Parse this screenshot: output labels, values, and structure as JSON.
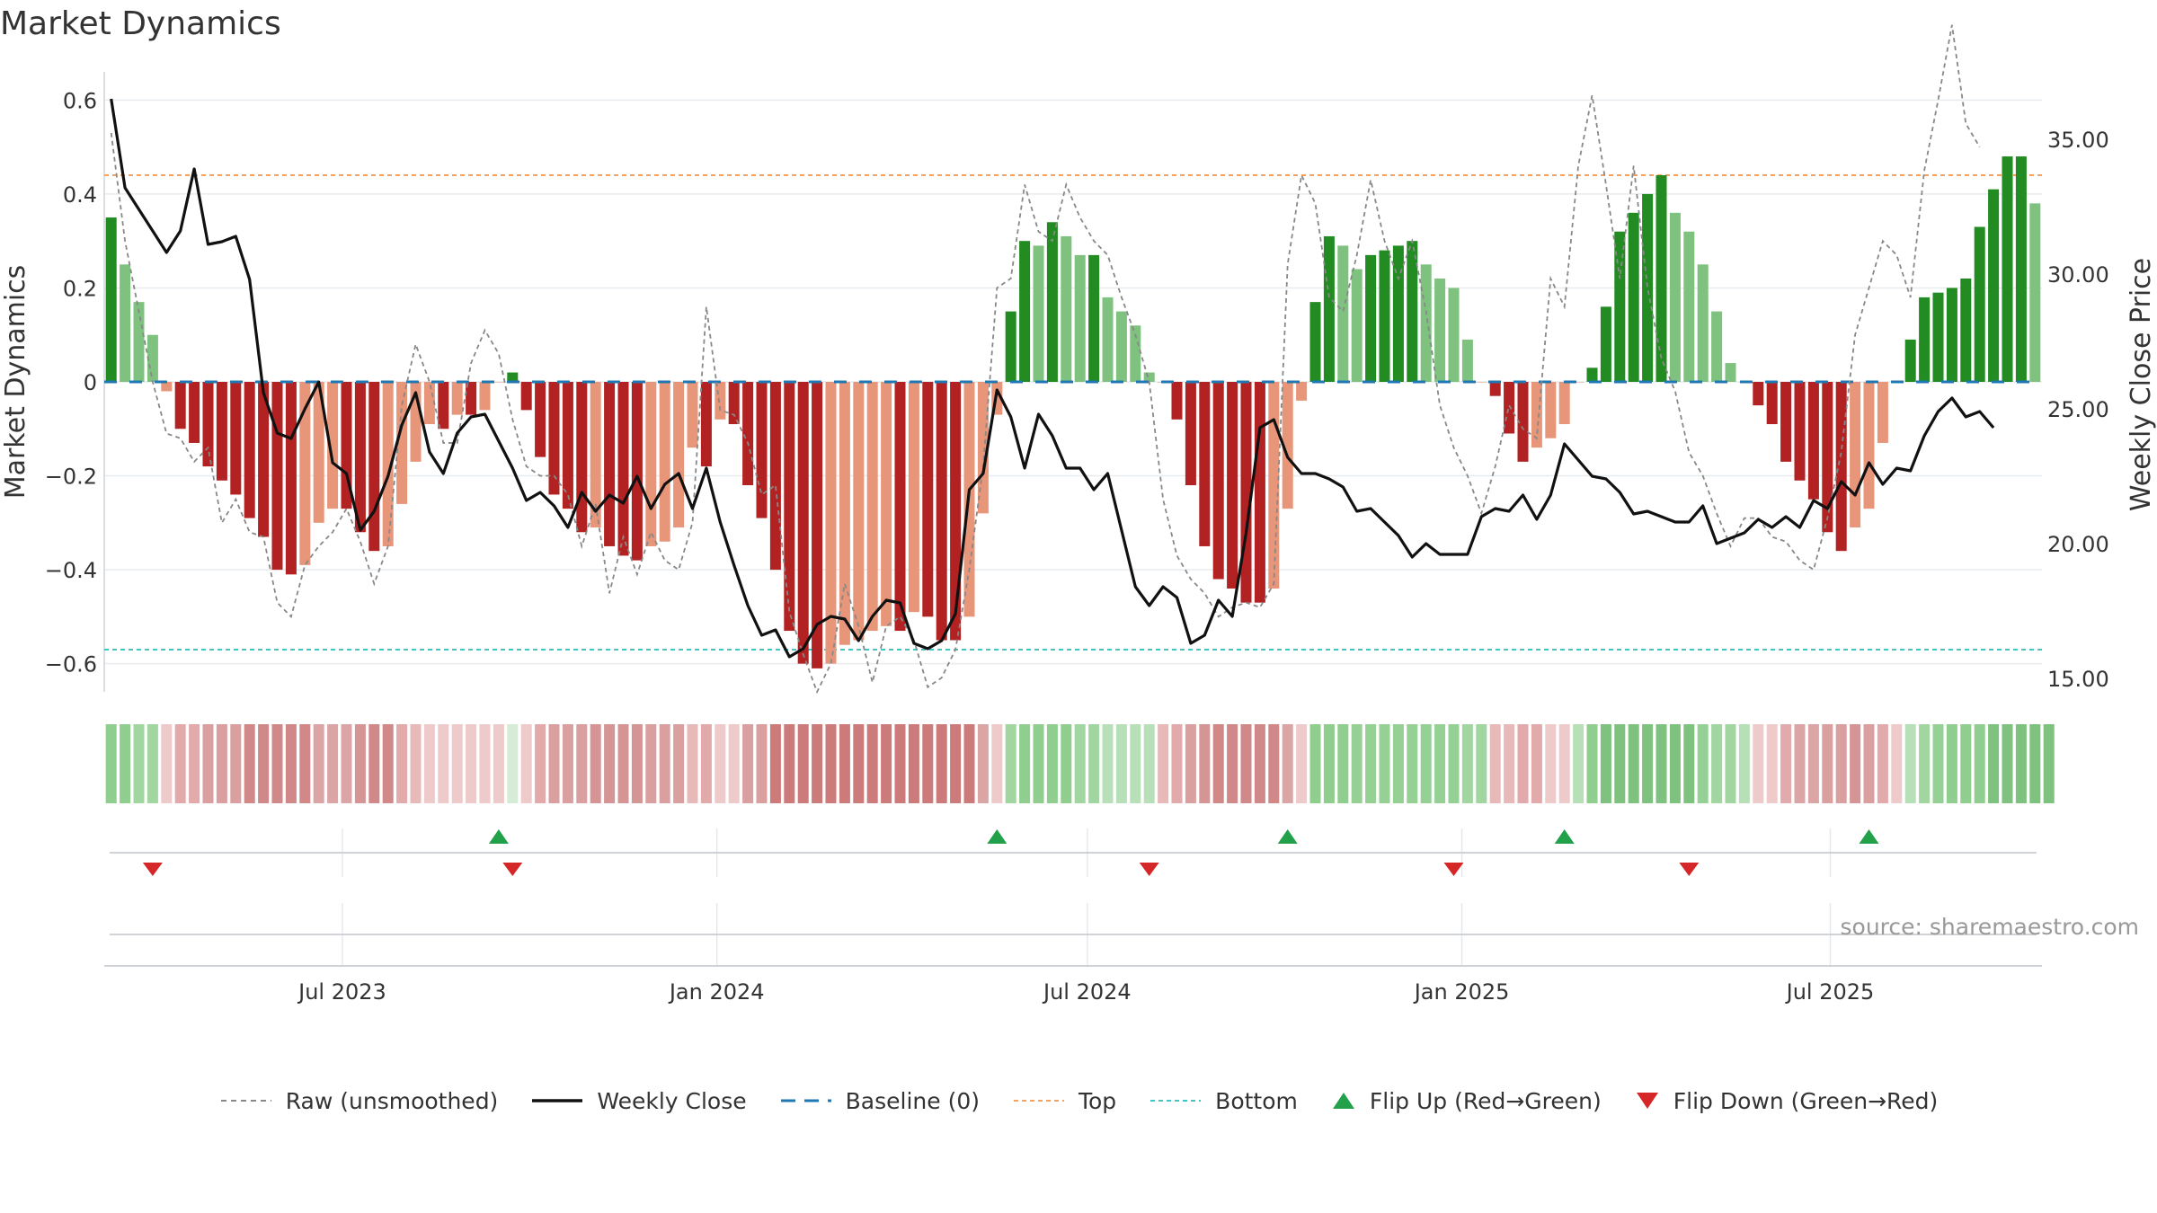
{
  "chart_data": {
    "type": "bar",
    "title": "Market Dynamics",
    "ylabel": "Market Dynamics",
    "y2label": "Weekly Close Price",
    "ylim": [
      -0.66,
      0.66
    ],
    "y2lim": [
      14.5,
      37.5
    ],
    "yticks": [
      0.6,
      0.4,
      0.2,
      0,
      -0.2,
      -0.4,
      -0.6
    ],
    "ytick_labels": [
      "0.6",
      "0.4",
      "0.2",
      "0",
      "−0.2",
      "−0.4",
      "−0.6"
    ],
    "y2ticks": [
      35,
      30,
      25,
      20,
      15
    ],
    "y2tick_labels": [
      "35.00",
      "30.00",
      "25.00",
      "20.00",
      "15.00"
    ],
    "x_start": "2023-03-06",
    "x_end": "2025-10-13",
    "xticks": [
      "2023-07-01",
      "2024-01-01",
      "2024-07-01",
      "2025-01-01",
      "2025-07-01"
    ],
    "xtick_labels": [
      "Jul 2023",
      "Jan 2024",
      "Jul 2024",
      "Jan 2025",
      "Jul 2025"
    ],
    "top_level": 0.44,
    "bottom_level": -0.57,
    "baseline": 0,
    "grid": true,
    "legend_position": "bottom-center",
    "source_text": "source: sharemaestro.com",
    "colors": {
      "up_dark": "#228b22",
      "up_light": "#7fc27f",
      "down_dark": "#b22222",
      "down_light": "#e8967a",
      "raw": "#888888",
      "close": "#111111",
      "baseline": "#1f77b4",
      "top": "#f4a261",
      "bottom": "#40c4c4",
      "flip_up": "#22a04a",
      "flip_down": "#d62728"
    },
    "series": [
      {
        "name": "Market Dynamics",
        "type": "bar",
        "values": [
          0.35,
          0.25,
          0.17,
          0.1,
          -0.02,
          -0.1,
          -0.13,
          -0.18,
          -0.21,
          -0.24,
          -0.29,
          -0.33,
          -0.4,
          -0.41,
          -0.39,
          -0.3,
          -0.27,
          -0.27,
          -0.32,
          -0.36,
          -0.35,
          -0.26,
          -0.17,
          -0.09,
          -0.1,
          -0.07,
          -0.07,
          -0.06,
          0.0,
          0.02,
          -0.06,
          -0.16,
          -0.24,
          -0.27,
          -0.32,
          -0.31,
          -0.35,
          -0.37,
          -0.38,
          -0.35,
          -0.34,
          -0.31,
          -0.14,
          -0.18,
          -0.08,
          -0.09,
          -0.22,
          -0.29,
          -0.4,
          -0.53,
          -0.6,
          -0.61,
          -0.6,
          -0.56,
          -0.55,
          -0.53,
          -0.52,
          -0.53,
          -0.49,
          -0.5,
          -0.55,
          -0.55,
          -0.5,
          -0.28,
          -0.07,
          0.15,
          0.3,
          0.29,
          0.34,
          0.31,
          0.27,
          0.27,
          0.18,
          0.15,
          0.12,
          0.02,
          0.0,
          -0.08,
          -0.22,
          -0.35,
          -0.42,
          -0.44,
          -0.47,
          -0.47,
          -0.44,
          -0.27,
          -0.04,
          0.17,
          0.31,
          0.29,
          0.24,
          0.27,
          0.28,
          0.29,
          0.3,
          0.25,
          0.22,
          0.2,
          0.09,
          0.0,
          -0.03,
          -0.11,
          -0.17,
          -0.14,
          -0.12,
          -0.09,
          0.0,
          0.03,
          0.16,
          0.32,
          0.36,
          0.4,
          0.44,
          0.36,
          0.32,
          0.25,
          0.15,
          0.04,
          0.0,
          -0.05,
          -0.09,
          -0.17,
          -0.21,
          -0.25,
          -0.32,
          -0.36,
          -0.31,
          -0.27,
          -0.13,
          0.0,
          0.09,
          0.18,
          0.19,
          0.2,
          0.22,
          0.33,
          0.41,
          0.48,
          0.48,
          0.38
        ]
      },
      {
        "name": "Raw (unsmoothed)",
        "type": "line",
        "values": [
          0.53,
          0.3,
          0.15,
          0.0,
          -0.11,
          -0.12,
          -0.17,
          -0.14,
          -0.3,
          -0.25,
          -0.32,
          -0.33,
          -0.47,
          -0.5,
          -0.39,
          -0.35,
          -0.32,
          -0.27,
          -0.34,
          -0.43,
          -0.35,
          -0.05,
          0.08,
          0.0,
          -0.13,
          -0.13,
          0.04,
          0.11,
          0.06,
          -0.08,
          -0.18,
          -0.2,
          -0.2,
          -0.24,
          -0.35,
          -0.26,
          -0.45,
          -0.33,
          -0.41,
          -0.32,
          -0.38,
          -0.4,
          -0.3,
          0.16,
          -0.06,
          -0.07,
          -0.13,
          -0.24,
          -0.22,
          -0.49,
          -0.58,
          -0.66,
          -0.6,
          -0.43,
          -0.52,
          -0.64,
          -0.52,
          -0.5,
          -0.55,
          -0.65,
          -0.63,
          -0.57,
          -0.4,
          -0.18,
          0.2,
          0.22,
          0.42,
          0.32,
          0.3,
          0.42,
          0.35,
          0.3,
          0.27,
          0.18,
          0.1,
          0.0,
          -0.25,
          -0.37,
          -0.42,
          -0.45,
          -0.5,
          -0.48,
          -0.47,
          -0.48,
          -0.43,
          0.25,
          0.44,
          0.38,
          0.18,
          0.15,
          0.27,
          0.43,
          0.3,
          0.22,
          0.3,
          0.15,
          -0.05,
          -0.14,
          -0.2,
          -0.28,
          -0.18,
          -0.05,
          -0.1,
          -0.12,
          0.22,
          0.16,
          0.46,
          0.61,
          0.42,
          0.22,
          0.46,
          0.2,
          0.05,
          -0.02,
          -0.15,
          -0.2,
          -0.28,
          -0.35,
          -0.29,
          -0.29,
          -0.33,
          -0.34,
          -0.38,
          -0.4,
          -0.29,
          -0.15,
          0.1,
          0.2,
          0.3,
          0.27,
          0.18,
          0.45,
          0.6,
          0.76,
          0.55,
          0.5
        ]
      },
      {
        "name": "Weekly Close",
        "type": "line",
        "axis": "y2",
        "values": [
          36.5,
          33.2,
          32.4,
          31.6,
          30.8,
          31.6,
          33.9,
          31.1,
          31.2,
          31.4,
          29.8,
          25.6,
          24.1,
          23.9,
          25.0,
          26.0,
          23.0,
          22.6,
          20.5,
          21.2,
          22.5,
          24.4,
          25.6,
          23.4,
          22.6,
          24.1,
          24.7,
          24.8,
          23.8,
          22.8,
          21.6,
          21.9,
          21.4,
          20.6,
          21.9,
          21.2,
          21.8,
          21.5,
          22.5,
          21.3,
          22.2,
          22.6,
          21.3,
          22.8,
          20.8,
          19.2,
          17.7,
          16.6,
          16.8,
          15.8,
          16.1,
          17.0,
          17.3,
          17.2,
          16.4,
          17.3,
          17.9,
          17.8,
          16.3,
          16.1,
          16.4,
          17.4,
          22.0,
          22.6,
          25.7,
          24.7,
          22.8,
          24.8,
          24.0,
          22.8,
          22.8,
          22.0,
          22.6,
          20.5,
          18.4,
          17.7,
          18.4,
          18.0,
          16.3,
          16.6,
          17.9,
          17.3,
          20.4,
          24.3,
          24.6,
          23.2,
          22.6,
          22.6,
          22.4,
          22.1,
          21.2,
          21.3,
          20.8,
          20.3,
          19.5,
          20.0,
          19.6,
          19.6,
          19.6,
          21.0,
          21.3,
          21.2,
          21.8,
          20.9,
          21.8,
          23.7,
          23.1,
          22.5,
          22.4,
          21.9,
          21.1,
          21.2,
          21.0,
          20.8,
          20.8,
          21.4,
          20.0,
          20.2,
          20.4,
          20.9,
          20.6,
          21.0,
          20.6,
          21.6,
          21.3,
          22.3,
          21.8,
          23.0,
          22.2,
          22.8,
          22.7,
          24.0,
          24.9,
          25.4,
          24.7,
          24.9,
          24.3
        ]
      }
    ],
    "strip_colors": [
      "#8fce8f",
      "#8fce8f",
      "#a1d6a1",
      "#a1d6a1",
      "#eecaca",
      "#e2aaaa",
      "#e2aaaa",
      "#daa0a0",
      "#daa0a0",
      "#daa0a0",
      "#d18888",
      "#d18888",
      "#d18888",
      "#d18888",
      "#d18888",
      "#dca5a5",
      "#dca5a5",
      "#dca5a5",
      "#d59595",
      "#d18888",
      "#d18888",
      "#e2aaaa",
      "#e8b9b9",
      "#eecaca",
      "#eecaca",
      "#eecaca",
      "#eecaca",
      "#eecaca",
      "#eecaca",
      "#d6ecd6",
      "#eecaca",
      "#e2aaaa",
      "#daa0a0",
      "#daa0a0",
      "#daa0a0",
      "#d59595",
      "#d59595",
      "#d59595",
      "#d59595",
      "#daa0a0",
      "#daa0a0",
      "#daa0a0",
      "#e8b9b9",
      "#e2aaaa",
      "#eecaca",
      "#eecaca",
      "#daa0a0",
      "#daa0a0",
      "#cd7a7a",
      "#cd7a7a",
      "#cd7a7a",
      "#cd7a7a",
      "#cd7a7a",
      "#cd7a7a",
      "#cd7a7a",
      "#cd7a7a",
      "#cd7a7a",
      "#cd7a7a",
      "#cd7a7a",
      "#cd7a7a",
      "#cd7a7a",
      "#cd7a7a",
      "#cd7a7a",
      "#dca5a5",
      "#eecaca",
      "#a1d6a1",
      "#8fce8f",
      "#8fce8f",
      "#8fce8f",
      "#8fce8f",
      "#a1d6a1",
      "#a1d6a1",
      "#b8e0b8",
      "#b8e0b8",
      "#b8e0b8",
      "#b8e0b8",
      "#e8b9b9",
      "#e2aaaa",
      "#daa0a0",
      "#d59595",
      "#d18888",
      "#d18888",
      "#d18888",
      "#d18888",
      "#d18888",
      "#dca5a5",
      "#eecaca",
      "#8fce8f",
      "#8fce8f",
      "#8fce8f",
      "#95d095",
      "#95d095",
      "#95d095",
      "#95d095",
      "#95d095",
      "#95d095",
      "#95d095",
      "#95d095",
      "#a1d6a1",
      "#a1d6a1",
      "#e8b9b9",
      "#e8b9b9",
      "#e2aaaa",
      "#e2aaaa",
      "#eecaca",
      "#eecaca",
      "#b8e0b8",
      "#8fce8f",
      "#7fc27f",
      "#7fc27f",
      "#7fc27f",
      "#7fc27f",
      "#7fc27f",
      "#7fc27f",
      "#7fc27f",
      "#95d095",
      "#a1d6a1",
      "#a1d6a1",
      "#b8e0b8",
      "#eecaca",
      "#eecaca",
      "#e2aaaa",
      "#dca5a5",
      "#dca5a5",
      "#daa0a0",
      "#daa0a0",
      "#d59595",
      "#daa0a0",
      "#e2aaaa",
      "#eecaca",
      "#b8e0b8",
      "#a1d6a1",
      "#95d095",
      "#8fce8f",
      "#8fce8f",
      "#8fce8f",
      "#7fc27f",
      "#7fc27f",
      "#7fc27f",
      "#7fc27f",
      "#7fc27f"
    ],
    "flip_up_indices": [
      28,
      64,
      85,
      105,
      127
    ],
    "flip_down_indices": [
      3,
      29,
      75,
      97,
      114
    ]
  },
  "legend": {
    "raw": "Raw (unsmoothed)",
    "close": "Weekly Close",
    "baseline": "Baseline (0)",
    "top": "Top",
    "bottom": "Bottom",
    "flip_up": "Flip Up (Red→Green)",
    "flip_down": "Flip Down (Green→Red)"
  }
}
